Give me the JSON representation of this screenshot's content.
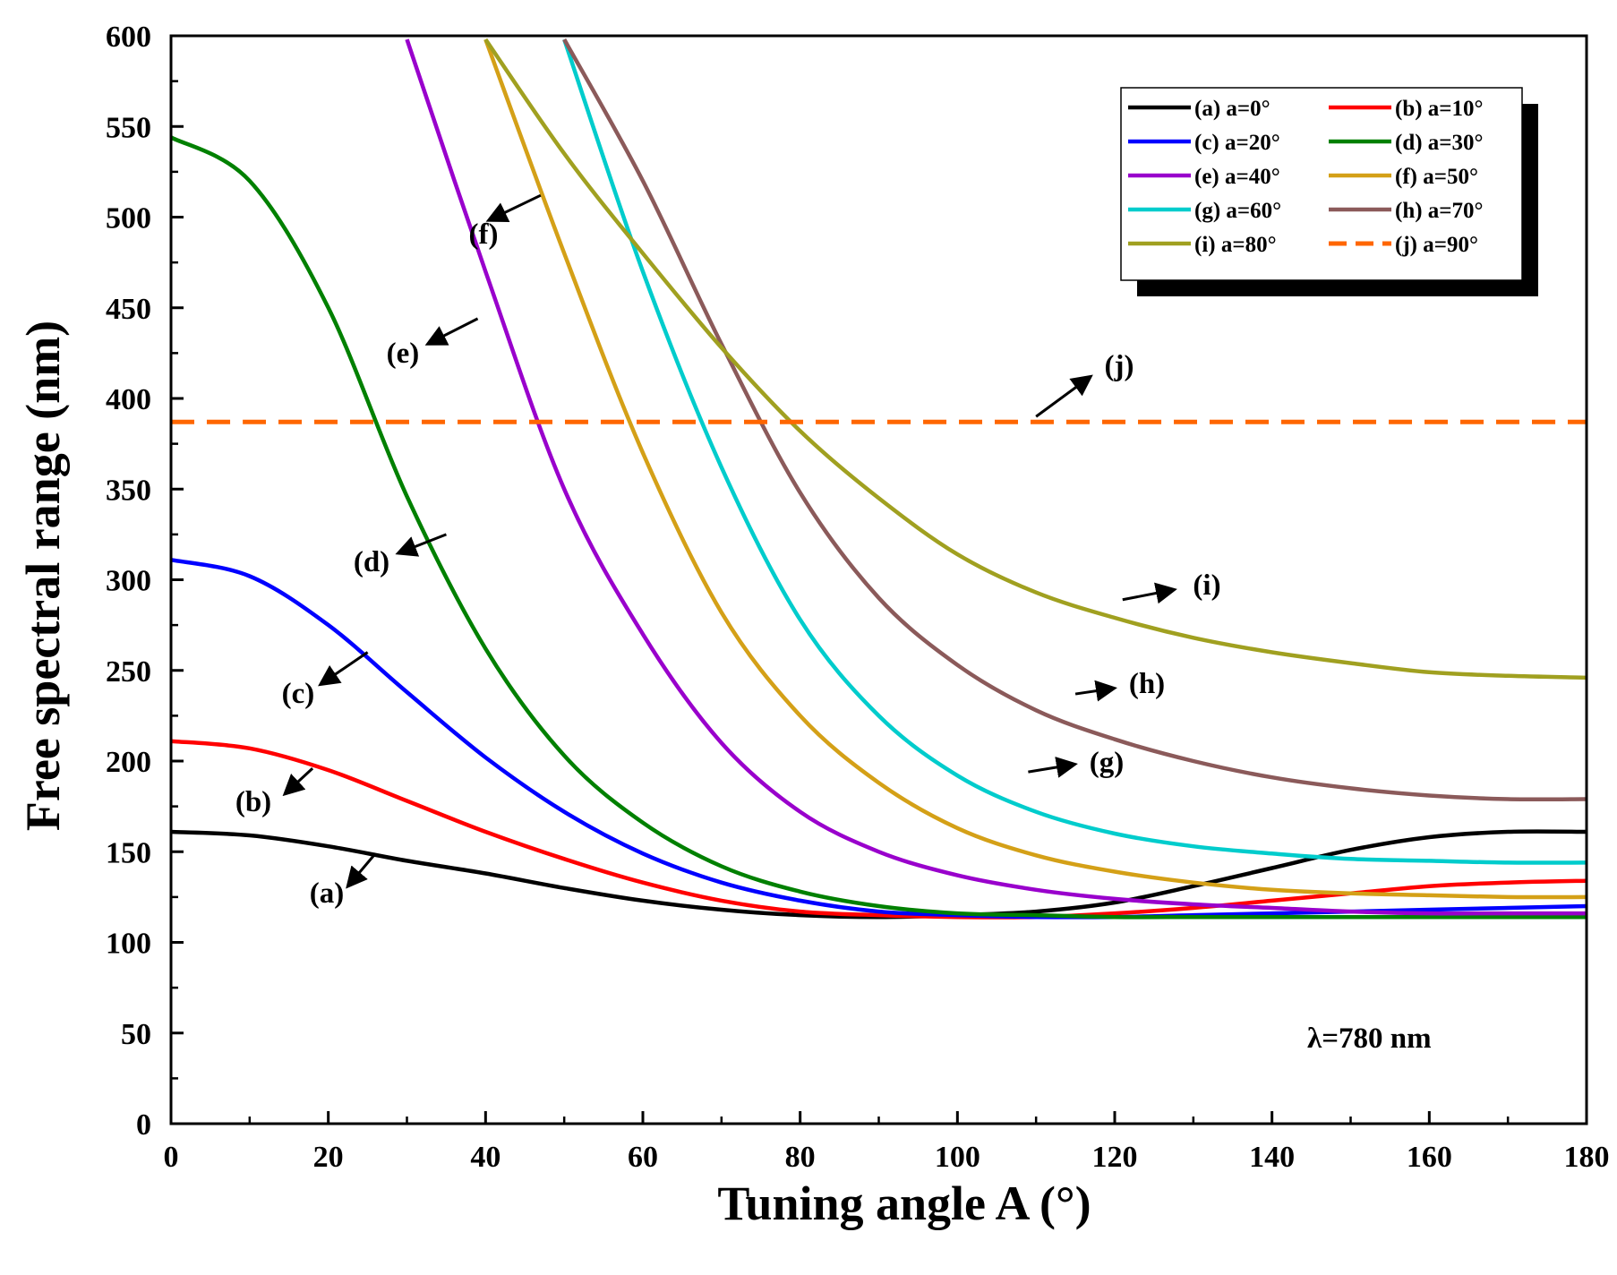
{
  "chart_data": {
    "type": "line",
    "title": "",
    "xlabel": "Tuning angle A  (°)",
    "ylabel": "Free spectral range (nm)",
    "xlim": [
      0,
      180
    ],
    "ylim": [
      0,
      600
    ],
    "xticks": [
      0,
      20,
      40,
      60,
      80,
      100,
      120,
      140,
      160,
      180
    ],
    "yticks": [
      0,
      50,
      100,
      150,
      200,
      250,
      300,
      350,
      400,
      450,
      500,
      550,
      600
    ],
    "xtick_labels": [
      "0",
      "20",
      "40",
      "60",
      "80",
      "100",
      "120",
      "140",
      "160",
      "180"
    ],
    "ytick_labels": [
      "0",
      "50",
      "100",
      "150",
      "200",
      "250",
      "300",
      "350",
      "400",
      "450",
      "500",
      "550",
      "600"
    ],
    "grid": false,
    "legend_position": "top-right",
    "annotation_text": "λ=780 nm",
    "x": [
      0,
      10,
      20,
      30,
      40,
      50,
      60,
      70,
      80,
      90,
      100,
      110,
      120,
      130,
      140,
      150,
      160,
      170,
      180
    ],
    "series": [
      {
        "name": "(a) a=0°",
        "label": "(a)",
        "color": "#000000",
        "dashed": false,
        "values": [
          161,
          159,
          153,
          145,
          138,
          130,
          123,
          118,
          115,
          114,
          115,
          117,
          122,
          131,
          141,
          151,
          158,
          161,
          161
        ]
      },
      {
        "name": "(b) a=10°",
        "label": "(b)",
        "color": "#ff0000",
        "dashed": false,
        "values": [
          211,
          207,
          195,
          178,
          161,
          146,
          133,
          123,
          117,
          115,
          114,
          114,
          116,
          119,
          123,
          127,
          131,
          133,
          134
        ]
      },
      {
        "name": "(c) a=20°",
        "label": "(c)",
        "color": "#0000ff",
        "dashed": false,
        "values": [
          311,
          302,
          275,
          238,
          202,
          172,
          149,
          133,
          123,
          117,
          115,
          114,
          114,
          115,
          116,
          117,
          118,
          119,
          120
        ]
      },
      {
        "name": "(d) a=30°",
        "label": "(d)",
        "color": "#008000",
        "dashed": false,
        "values": [
          544,
          520,
          450,
          346,
          262,
          203,
          166,
          142,
          128,
          120,
          116,
          115,
          114,
          114,
          114,
          114,
          114,
          114,
          114
        ]
      },
      {
        "name": "(e) a=40°",
        "label": "(e)",
        "color": "#9900cc",
        "dashed": false,
        "values": [
          null,
          null,
          null,
          598,
          470,
          350,
          270,
          210,
          172,
          150,
          137,
          129,
          124,
          121,
          119,
          117,
          116,
          116,
          116
        ]
      },
      {
        "name": "(f) a=50°",
        "label": "(f)",
        "color": "#d4a017",
        "dashed": false,
        "values": [
          null,
          null,
          null,
          null,
          598,
          480,
          370,
          282,
          225,
          188,
          163,
          148,
          139,
          133,
          129,
          127,
          126,
          125,
          125
        ]
      },
      {
        "name": "(g) a=60°",
        "label": "(g)",
        "color": "#00cccc",
        "dashed": false,
        "values": [
          null,
          null,
          null,
          null,
          null,
          598,
          470,
          362,
          278,
          225,
          192,
          172,
          160,
          153,
          149,
          146,
          145,
          144,
          144
        ]
      },
      {
        "name": "(h) a=70°",
        "label": "(h)",
        "color": "#8b5a5a",
        "dashed": false,
        "values": [
          null,
          null,
          null,
          null,
          null,
          598,
          520,
          430,
          348,
          290,
          253,
          228,
          212,
          200,
          191,
          185,
          181,
          179,
          179
        ]
      },
      {
        "name": "(i) a=80°",
        "label": "(i)",
        "color": "#a0a020",
        "dashed": false,
        "values": [
          null,
          null,
          null,
          null,
          598,
          535,
          480,
          428,
          382,
          345,
          314,
          293,
          279,
          268,
          260,
          254,
          249,
          247,
          246
        ]
      },
      {
        "name": "(j) a=90°",
        "label": "(j)",
        "color": "#ff6600",
        "dashed": true,
        "values": [
          387,
          387,
          387,
          387,
          387,
          387,
          387,
          387,
          387,
          387,
          387,
          387,
          387,
          387,
          387,
          387,
          387,
          387,
          387
        ]
      }
    ]
  }
}
